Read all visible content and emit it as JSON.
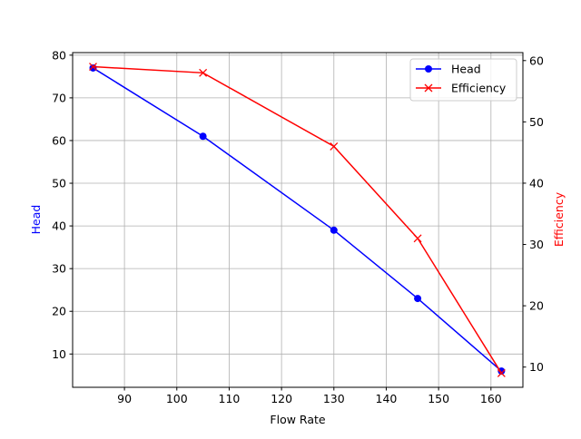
{
  "chart_data": {
    "type": "line",
    "title": "",
    "xlabel": "Flow Rate",
    "ylabel": "Head",
    "y2label": "Efficiency",
    "x": [
      84,
      105,
      130,
      146,
      162
    ],
    "xlim": [
      80.1,
      166.1
    ],
    "ylim": [
      2.2,
      80.6
    ],
    "y2lim": [
      6.7,
      61.3
    ],
    "xticks": [
      90,
      100,
      110,
      120,
      130,
      140,
      150,
      160
    ],
    "yticks": [
      10,
      20,
      30,
      40,
      50,
      60,
      70,
      80
    ],
    "y2ticks": [
      10,
      20,
      30,
      40,
      50,
      60
    ],
    "grid": true,
    "legend_position": "top-right",
    "series": [
      {
        "name": "Head",
        "axis": "left",
        "values": [
          77,
          61,
          39,
          23,
          6
        ],
        "color": "#0000ff",
        "marker": "circle"
      },
      {
        "name": "Efficiency",
        "axis": "right",
        "values": [
          59,
          58,
          46,
          31,
          9
        ],
        "color": "#ff0000",
        "marker": "x"
      }
    ]
  }
}
